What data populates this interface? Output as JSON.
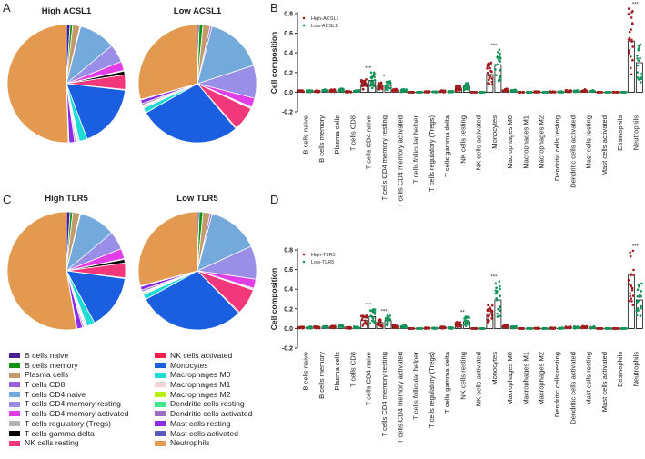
{
  "panel_labels": [
    "A",
    "B",
    "C",
    "D"
  ],
  "cell_types": [
    "B cells naive",
    "B cells memory",
    "Plasma cells",
    "T cells CD8",
    "T cells CD4 naive",
    "T cells CD4 memory resting",
    "T cells CD4 memory activated",
    "T cells follicular helper",
    "T cells regulatory (Tregs)",
    "T cells gamma delta",
    "NK cells resting",
    "NK cells activated",
    "Monocytes",
    "Macrophages M0",
    "Macrophages M1",
    "Macrophages M2",
    "Dendritic cells resting",
    "Dendritic cells activated",
    "Mast cells resting",
    "Mast cells activated",
    "Eosinophils",
    "Neutrophils"
  ],
  "legend": {
    "left": [
      {
        "label": "B cells naive",
        "color": "#4b1f8f"
      },
      {
        "label": "B cells memory",
        "color": "#119411"
      },
      {
        "label": "Plasma cells",
        "color": "#c49a6c"
      },
      {
        "label": "T cells CD8",
        "color": "#9a5fe0"
      },
      {
        "label": "T cells CD4 naive",
        "color": "#74a9dc"
      },
      {
        "label": "T cells CD4 memory resting",
        "color": "#9a8fe8"
      },
      {
        "label": "T cells CD4 memory activated",
        "color": "#e13ee8"
      },
      {
        "label": "T cells regulatory (Tregs)",
        "color": "#b5b5b5"
      },
      {
        "label": "T cells gamma delta",
        "color": "#000000"
      },
      {
        "label": "NK cells resting",
        "color": "#f2387a"
      }
    ],
    "right": [
      {
        "label": "NK cells activated",
        "color": "#f5204c"
      },
      {
        "label": "Monocytes",
        "color": "#1a5fe0"
      },
      {
        "label": "Macrophages M0",
        "color": "#1fdbd8"
      },
      {
        "label": "Macrophages M1",
        "color": "#efd5d5"
      },
      {
        "label": "Macrophages M2",
        "color": "#b5f000"
      },
      {
        "label": "Dendritic cells resting",
        "color": "#3ee88a"
      },
      {
        "label": "Dendritic cells activated",
        "color": "#9a6ec0"
      },
      {
        "label": "Mast cells resting",
        "color": "#8a2be8"
      },
      {
        "label": "Mast cells activated",
        "color": "#5a5ac0"
      },
      {
        "label": "Neutrophils",
        "color": "#e3994f"
      }
    ]
  },
  "chart_data": [
    {
      "type": "pie",
      "panel": "A",
      "title": "High ACSL1",
      "labels": [
        "B cells naive",
        "B cells memory",
        "Plasma cells",
        "T cells CD8",
        "T cells CD4 naive",
        "T cells CD4 memory resting",
        "T cells CD4 memory activated",
        "T cells regulatory (Tregs)",
        "T cells gamma delta",
        "NK cells resting",
        "NK cells activated",
        "Monocytes",
        "Macrophages M0",
        "Macrophages M1",
        "Macrophages M2",
        "Dendritic cells resting",
        "Dendritic cells activated",
        "Mast cells resting",
        "Mast cells activated",
        "Neutrophils"
      ],
      "colors": [
        "#4b1f8f",
        "#119411",
        "#c49a6c",
        "#9a5fe0",
        "#74a9dc",
        "#9a8fe8",
        "#e13ee8",
        "#b5b5b5",
        "#000000",
        "#f2387a",
        "#f5204c",
        "#1a5fe0",
        "#1fdbd8",
        "#efd5d5",
        "#b5f000",
        "#3ee88a",
        "#9a6ec0",
        "#8a2be8",
        "#5a5ac0",
        "#e3994f"
      ],
      "values": [
        0.01,
        0.007,
        0.02,
        0.002,
        0.1,
        0.05,
        0.025,
        0.002,
        0.01,
        0.04,
        0.002,
        0.175,
        0.022,
        0.005,
        0.002,
        0.002,
        0.004,
        0.015,
        0.002,
        0.505
      ]
    },
    {
      "type": "pie",
      "panel": "A",
      "title": "Low ACSL1",
      "labels": [
        "B cells naive",
        "B cells memory",
        "Plasma cells",
        "T cells CD8",
        "T cells CD4 naive",
        "T cells CD4 memory resting",
        "T cells CD4 memory activated",
        "T cells regulatory (Tregs)",
        "T cells gamma delta",
        "NK cells resting",
        "NK cells activated",
        "Monocytes",
        "Macrophages M0",
        "Macrophages M1",
        "Macrophages M2",
        "Dendritic cells resting",
        "Dendritic cells activated",
        "Mast cells resting",
        "Mast cells activated",
        "Neutrophils"
      ],
      "colors": [
        "#4b1f8f",
        "#119411",
        "#c49a6c",
        "#9a5fe0",
        "#74a9dc",
        "#9a8fe8",
        "#e13ee8",
        "#b5b5b5",
        "#000000",
        "#f2387a",
        "#f5204c",
        "#1a5fe0",
        "#1fdbd8",
        "#efd5d5",
        "#b5f000",
        "#3ee88a",
        "#9a6ec0",
        "#8a2be8",
        "#5a5ac0",
        "#e3994f"
      ],
      "values": [
        0.005,
        0.01,
        0.02,
        0.005,
        0.16,
        0.09,
        0.025,
        0.003,
        0.002,
        0.065,
        0.003,
        0.28,
        0.014,
        0.004,
        0.002,
        0.002,
        0.005,
        0.01,
        0.002,
        0.293
      ]
    },
    {
      "type": "pie",
      "panel": "C",
      "title": "High TLR5",
      "labels": [
        "B cells naive",
        "B cells memory",
        "Plasma cells",
        "T cells CD8",
        "T cells CD4 naive",
        "T cells CD4 memory resting",
        "T cells CD4 memory activated",
        "T cells regulatory (Tregs)",
        "T cells gamma delta",
        "NK cells resting",
        "NK cells activated",
        "Monocytes",
        "Macrophages M0",
        "Macrophages M1",
        "Macrophages M2",
        "Dendritic cells resting",
        "Dendritic cells activated",
        "Mast cells resting",
        "Mast cells activated",
        "Neutrophils"
      ],
      "colors": [
        "#4b1f8f",
        "#119411",
        "#c49a6c",
        "#9a5fe0",
        "#74a9dc",
        "#9a8fe8",
        "#e13ee8",
        "#b5b5b5",
        "#000000",
        "#f2387a",
        "#f5204c",
        "#1a5fe0",
        "#1fdbd8",
        "#efd5d5",
        "#b5f000",
        "#3ee88a",
        "#9a6ec0",
        "#8a2be8",
        "#5a5ac0",
        "#e3994f"
      ],
      "values": [
        0.01,
        0.007,
        0.02,
        0.002,
        0.1,
        0.05,
        0.028,
        0.002,
        0.01,
        0.04,
        0.002,
        0.15,
        0.022,
        0.005,
        0.002,
        0.002,
        0.004,
        0.015,
        0.002,
        0.527
      ]
    },
    {
      "type": "pie",
      "panel": "C",
      "title": "Low TLR5",
      "labels": [
        "B cells naive",
        "B cells memory",
        "Plasma cells",
        "T cells CD8",
        "T cells CD4 naive",
        "T cells CD4 memory resting",
        "T cells CD4 memory activated",
        "T cells regulatory (Tregs)",
        "T cells gamma delta",
        "NK cells resting",
        "NK cells activated",
        "Monocytes",
        "Macrophages M0",
        "Macrophages M1",
        "Macrophages M2",
        "Dendritic cells resting",
        "Dendritic cells activated",
        "Mast cells resting",
        "Mast cells activated",
        "Neutrophils"
      ],
      "colors": [
        "#4b1f8f",
        "#119411",
        "#c49a6c",
        "#9a5fe0",
        "#74a9dc",
        "#9a8fe8",
        "#e13ee8",
        "#b5b5b5",
        "#000000",
        "#f2387a",
        "#f5204c",
        "#1a5fe0",
        "#1fdbd8",
        "#efd5d5",
        "#b5f000",
        "#3ee88a",
        "#9a6ec0",
        "#8a2be8",
        "#5a5ac0",
        "#e3994f"
      ],
      "values": [
        0.005,
        0.01,
        0.02,
        0.005,
        0.14,
        0.09,
        0.025,
        0.003,
        0.002,
        0.07,
        0.003,
        0.29,
        0.014,
        0.004,
        0.002,
        0.002,
        0.005,
        0.01,
        0.002,
        0.288
      ]
    },
    {
      "type": "scatter",
      "panel": "B",
      "ylabel": "Cell composition",
      "ylim": [
        -0.2,
        0.8
      ],
      "yticks": [
        "-0.2",
        "0.0",
        "0.2",
        "0.4",
        "0.6",
        "0.8"
      ],
      "series": [
        {
          "name": "High-ACSL1",
          "color": "#a01c1c",
          "means": [
            0.01,
            0.01,
            0.015,
            0.005,
            0.08,
            0.06,
            0.02,
            0,
            0.003,
            0.01,
            0.04,
            0,
            0.18,
            0.02,
            0,
            0.002,
            0.002,
            0.01,
            0.015,
            0,
            0,
            0.52
          ]
        },
        {
          "name": "Low-ACSL1",
          "color": "#14935a",
          "means": [
            0.01,
            0.015,
            0.02,
            0.01,
            0.12,
            0.07,
            0.02,
            0,
            0.003,
            0.005,
            0.06,
            0,
            0.28,
            0.015,
            0,
            0,
            0.002,
            0.01,
            0.01,
            0,
            0,
            0.3
          ]
        }
      ],
      "significance": [
        "",
        "",
        "",
        "",
        "***",
        "*",
        "",
        "",
        "",
        "",
        "",
        "",
        "***",
        "",
        "",
        "",
        "",
        "",
        "",
        "",
        "",
        "***"
      ]
    },
    {
      "type": "scatter",
      "panel": "D",
      "ylabel": "Cell composition",
      "ylim": [
        -0.2,
        0.8
      ],
      "yticks": [
        "-0.2",
        "0.0",
        "0.2",
        "0.4",
        "0.6",
        "0.8"
      ],
      "series": [
        {
          "name": "High-TLR5",
          "color": "#a01c1c",
          "means": [
            0.01,
            0.01,
            0.015,
            0.005,
            0.08,
            0.06,
            0.02,
            0,
            0.003,
            0.01,
            0.04,
            0,
            0.15,
            0.02,
            0,
            0.002,
            0.002,
            0.01,
            0.015,
            0,
            0,
            0.55
          ]
        },
        {
          "name": "Low-TLR5",
          "color": "#14935a",
          "means": [
            0.01,
            0.015,
            0.02,
            0.01,
            0.12,
            0.08,
            0.02,
            0,
            0.003,
            0.005,
            0.07,
            0,
            0.29,
            0.015,
            0,
            0,
            0.002,
            0.01,
            0.01,
            0,
            0,
            0.29
          ]
        }
      ],
      "significance": [
        "",
        "",
        "",
        "",
        "***",
        "***",
        "",
        "",
        "",
        "",
        "**",
        "",
        "***",
        "",
        "",
        "",
        "",
        "",
        "",
        "",
        "",
        "***"
      ]
    }
  ]
}
